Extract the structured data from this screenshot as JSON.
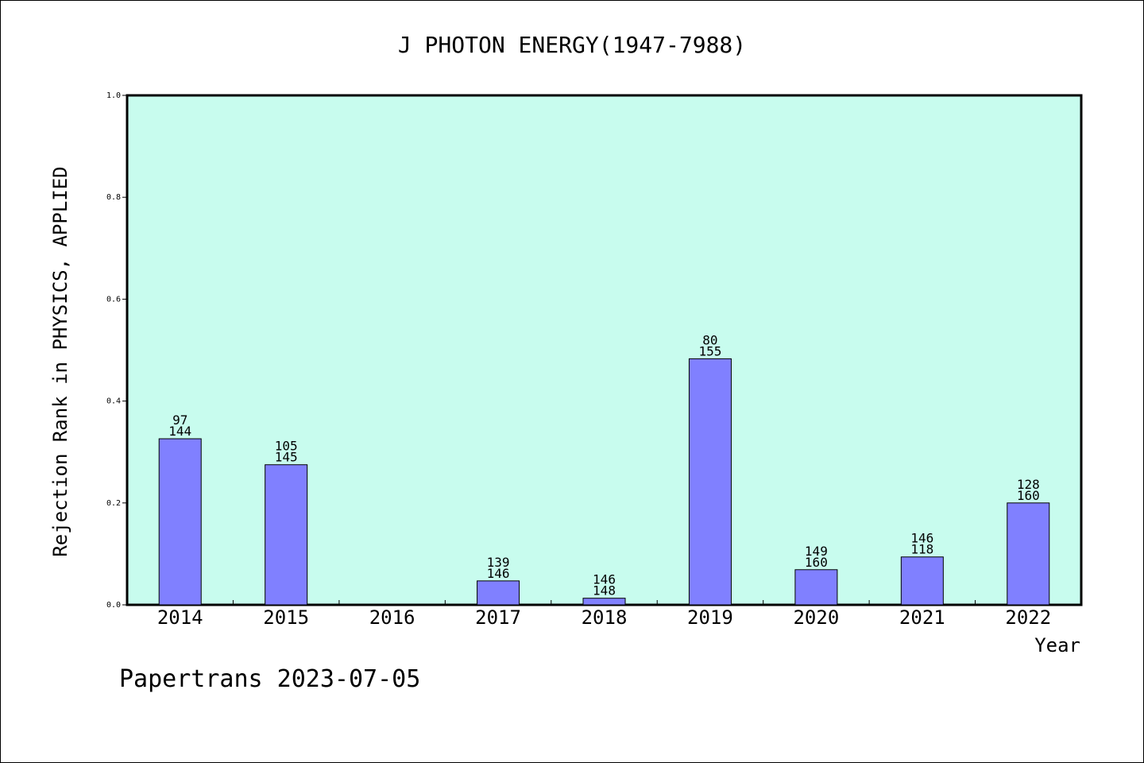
{
  "chart_data": {
    "type": "bar",
    "title": "J PHOTON ENERGY(1947-7988)",
    "xlabel": "Year",
    "ylabel": "Rejection Rank in PHYSICS, APPLIED",
    "ylim": [
      0,
      1.0
    ],
    "yticks": [
      "0.0",
      "0.2",
      "0.4",
      "0.6",
      "0.8",
      "1.0"
    ],
    "categories": [
      "2014",
      "2015",
      "2016",
      "2017",
      "2018",
      "2019",
      "2020",
      "2021",
      "2022"
    ],
    "values": [
      0.326,
      0.275,
      0.0,
      0.047,
      0.013,
      0.483,
      0.069,
      0.094,
      0.2
    ],
    "labels_top": [
      "97",
      "105",
      "",
      "139",
      "146",
      "80",
      "149",
      "146",
      "128"
    ],
    "labels_bottom": [
      "144",
      "145",
      "",
      "146",
      "148",
      "155",
      "160",
      "118",
      "160"
    ],
    "grid": false,
    "colors": {
      "plot_background": "#c8fcee",
      "bar_fill": "#8080ff",
      "bar_stroke": "#000000"
    }
  },
  "footer": "Papertrans 2023-07-05"
}
